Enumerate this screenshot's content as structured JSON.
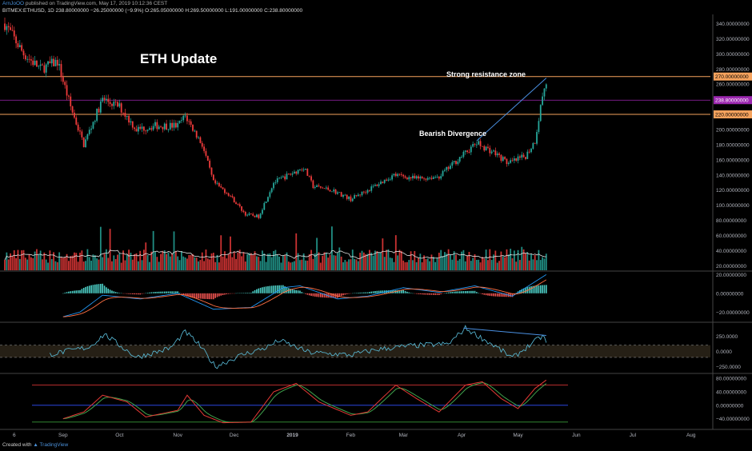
{
  "header": {
    "author": "ArnJoOO",
    "published": "published on TradingView.com, May 17, 2019 10:12:36 CEST",
    "symbol": "BITMEX:ETHUSD, 1D",
    "last": "238.80000000",
    "change": "−26.25000000 (−9.9%)",
    "ohlc": "O:265.05000000 H:269.50000000 L:191.00000000 C:238.80000000"
  },
  "footer": {
    "created_with": "Created with",
    "brand": "TradingView"
  },
  "colors": {
    "background": "#000000",
    "up": "#26a69a",
    "down": "#ef3b3b",
    "resistance": "#f5a25d",
    "price_line": "#9c27b0",
    "divergence": "#4a90e2",
    "axis_text": "#b2b5be"
  },
  "chart_data": [
    {
      "type": "candlestick",
      "title": "ETH Update",
      "x_tick_labels": [
        "6",
        "Sep",
        "Oct",
        "Nov",
        "Dec",
        "2019",
        "Feb",
        "Mar",
        "Apr",
        "May",
        "Jun",
        "Jul",
        "Aug"
      ],
      "ylim": [
        14,
        350
      ],
      "y_tick_labels": [
        "340.00000000",
        "320.00000000",
        "300.00000000",
        "280.00000000",
        "260.00000000",
        "240.00000000",
        "200.00000000",
        "180.00000000",
        "160.00000000",
        "140.00000000",
        "120.00000000",
        "100.00000000",
        "80.00000000",
        "60.00000000",
        "40.00000000",
        "20.00000000"
      ],
      "y_ticks": [
        340,
        320,
        300,
        280,
        260,
        240,
        200,
        180,
        160,
        140,
        120,
        100,
        80,
        60,
        40,
        20
      ],
      "horizontal_lines": [
        {
          "value": 270,
          "label": "270.00000000",
          "kind": "resistance"
        },
        {
          "value": 220,
          "label": "220.00000000",
          "kind": "resistance"
        },
        {
          "value": 238.8,
          "label": "238.80000000",
          "kind": "last_price"
        }
      ],
      "annotations": [
        {
          "text": "Strong resistance zone"
        },
        {
          "text": "Bearish Divergence"
        }
      ],
      "divergence_line": {
        "from": {
          "x": "Apr 9",
          "y": 185
        },
        "to": {
          "x": "May 16",
          "y": 268
        }
      },
      "price_anchors": [
        {
          "x": "Aug 2018",
          "y": 340
        },
        {
          "x": "Aug 11",
          "y": 300
        },
        {
          "x": "Aug 20",
          "y": 280
        },
        {
          "x": "Aug 29",
          "y": 290
        },
        {
          "x": "Sep 5",
          "y": 230
        },
        {
          "x": "Sep 12",
          "y": 180
        },
        {
          "x": "Sep 22",
          "y": 240
        },
        {
          "x": "Oct 1",
          "y": 230
        },
        {
          "x": "Oct 10",
          "y": 200
        },
        {
          "x": "Oct 20",
          "y": 205
        },
        {
          "x": "Nov 1",
          "y": 205
        },
        {
          "x": "Nov 5",
          "y": 218
        },
        {
          "x": "Nov 14",
          "y": 180
        },
        {
          "x": "Nov 20",
          "y": 130
        },
        {
          "x": "Nov 28",
          "y": 115
        },
        {
          "x": "Dec 7",
          "y": 88
        },
        {
          "x": "Dec 14",
          "y": 85
        },
        {
          "x": "Dec 22",
          "y": 130
        },
        {
          "x": "Dec 30",
          "y": 140
        },
        {
          "x": "Jan 7",
          "y": 150
        },
        {
          "x": "Jan 12",
          "y": 125
        },
        {
          "x": "Jan 22",
          "y": 120
        },
        {
          "x": "Feb 1",
          "y": 108
        },
        {
          "x": "Feb 10",
          "y": 120
        },
        {
          "x": "Feb 24",
          "y": 140
        },
        {
          "x": "Mar 8",
          "y": 135
        },
        {
          "x": "Mar 20",
          "y": 138
        },
        {
          "x": "Apr 1",
          "y": 165
        },
        {
          "x": "Apr 9",
          "y": 182
        },
        {
          "x": "Apr 18",
          "y": 170
        },
        {
          "x": "Apr 26",
          "y": 155
        },
        {
          "x": "May 5",
          "y": 165
        },
        {
          "x": "May 10",
          "y": 185
        },
        {
          "x": "May 14",
          "y": 245
        },
        {
          "x": "May 16",
          "y": 262
        }
      ]
    },
    {
      "type": "bar",
      "title": "",
      "note": "volume histogram with moving average, shares the price scale bottom (20-80)"
    },
    {
      "type": "histogram",
      "title": "",
      "ylim": [
        -30,
        22
      ],
      "y_tick_labels": [
        "20.00000000",
        "0.00000000",
        "−20.00000000"
      ],
      "y_ticks": [
        20,
        0,
        -20
      ],
      "line_anchors": [
        {
          "x": "Sep 1",
          "y": -25
        },
        {
          "x": "Sep 10",
          "y": -20
        },
        {
          "x": "Sep 22",
          "y": -2
        },
        {
          "x": "Oct 12",
          "y": -6
        },
        {
          "x": "Nov 1",
          "y": 0
        },
        {
          "x": "Nov 20",
          "y": -17
        },
        {
          "x": "Dec 10",
          "y": -15
        },
        {
          "x": "Dec 27",
          "y": 6
        },
        {
          "x": "Jan 5",
          "y": 8
        },
        {
          "x": "Jan 25",
          "y": -6
        },
        {
          "x": "Feb 10",
          "y": -3
        },
        {
          "x": "Mar 1",
          "y": 6
        },
        {
          "x": "Mar 20",
          "y": 1
        },
        {
          "x": "Apr 8",
          "y": 8
        },
        {
          "x": "Apr 28",
          "y": -3
        },
        {
          "x": "May 16",
          "y": 20
        }
      ]
    },
    {
      "type": "line",
      "title": "",
      "ylim": [
        -350,
        450
      ],
      "y_tick_labels": [
        "250.0000",
        "0.0000",
        "−250.0000"
      ],
      "y_ticks": [
        250,
        0,
        -250
      ],
      "dashed_levels": [
        100,
        -100
      ],
      "divergence_line": {
        "from": {
          "x": "Apr 2",
          "y": 380
        },
        "to": {
          "x": "May 16",
          "y": 260
        }
      },
      "line_anchors": [
        {
          "x": "Aug 25",
          "y": -50
        },
        {
          "x": "Sep 15",
          "y": 70
        },
        {
          "x": "Sep 23",
          "y": 280
        },
        {
          "x": "Oct 10",
          "y": -100
        },
        {
          "x": "Oct 28",
          "y": 50
        },
        {
          "x": "Nov 5",
          "y": 320
        },
        {
          "x": "Nov 12",
          "y": 120
        },
        {
          "x": "Nov 21",
          "y": -250
        },
        {
          "x": "Dec 5",
          "y": -60
        },
        {
          "x": "Dec 18",
          "y": 60
        },
        {
          "x": "Dec 25",
          "y": 180
        },
        {
          "x": "Jan 10",
          "y": -20
        },
        {
          "x": "Feb 1",
          "y": -60
        },
        {
          "x": "Feb 15",
          "y": 30
        },
        {
          "x": "Mar 5",
          "y": 90
        },
        {
          "x": "Mar 25",
          "y": 120
        },
        {
          "x": "Apr 3",
          "y": 380
        },
        {
          "x": "Apr 20",
          "y": 60
        },
        {
          "x": "Apr 28",
          "y": -110
        },
        {
          "x": "May 8",
          "y": 120
        },
        {
          "x": "May 14",
          "y": 250
        },
        {
          "x": "May 16",
          "y": 160
        }
      ]
    },
    {
      "type": "line",
      "title": "",
      "ylim": [
        -60,
        90
      ],
      "y_tick_labels": [
        "80.00000000",
        "40.00000000",
        "0.00000000",
        "−40.00000000"
      ],
      "y_ticks": [
        80,
        40,
        0,
        -40
      ],
      "levels": [
        {
          "value": 60,
          "color": "red"
        },
        {
          "value": 0,
          "color": "blue"
        },
        {
          "value": -50,
          "color": "green"
        }
      ],
      "line_anchors": [
        {
          "x": "Sep 1",
          "y": -40
        },
        {
          "x": "Sep 12",
          "y": -20
        },
        {
          "x": "Sep 22",
          "y": 30
        },
        {
          "x": "Oct 5",
          "y": 10
        },
        {
          "x": "Oct 15",
          "y": -35
        },
        {
          "x": "Nov 1",
          "y": -15
        },
        {
          "x": "Nov 6",
          "y": 30
        },
        {
          "x": "Nov 15",
          "y": -30
        },
        {
          "x": "Nov 25",
          "y": -52
        },
        {
          "x": "Dec 10",
          "y": -50
        },
        {
          "x": "Dec 22",
          "y": 40
        },
        {
          "x": "Jan 3",
          "y": 65
        },
        {
          "x": "Jan 15",
          "y": 10
        },
        {
          "x": "Feb 1",
          "y": -30
        },
        {
          "x": "Feb 10",
          "y": -20
        },
        {
          "x": "Feb 25",
          "y": 60
        },
        {
          "x": "Mar 8",
          "y": 20
        },
        {
          "x": "Mar 20",
          "y": -20
        },
        {
          "x": "Apr 3",
          "y": 60
        },
        {
          "x": "Apr 12",
          "y": 70
        },
        {
          "x": "Apr 22",
          "y": 20
        },
        {
          "x": "May 1",
          "y": -10
        },
        {
          "x": "May 10",
          "y": 50
        },
        {
          "x": "May 16",
          "y": 75
        }
      ]
    }
  ]
}
